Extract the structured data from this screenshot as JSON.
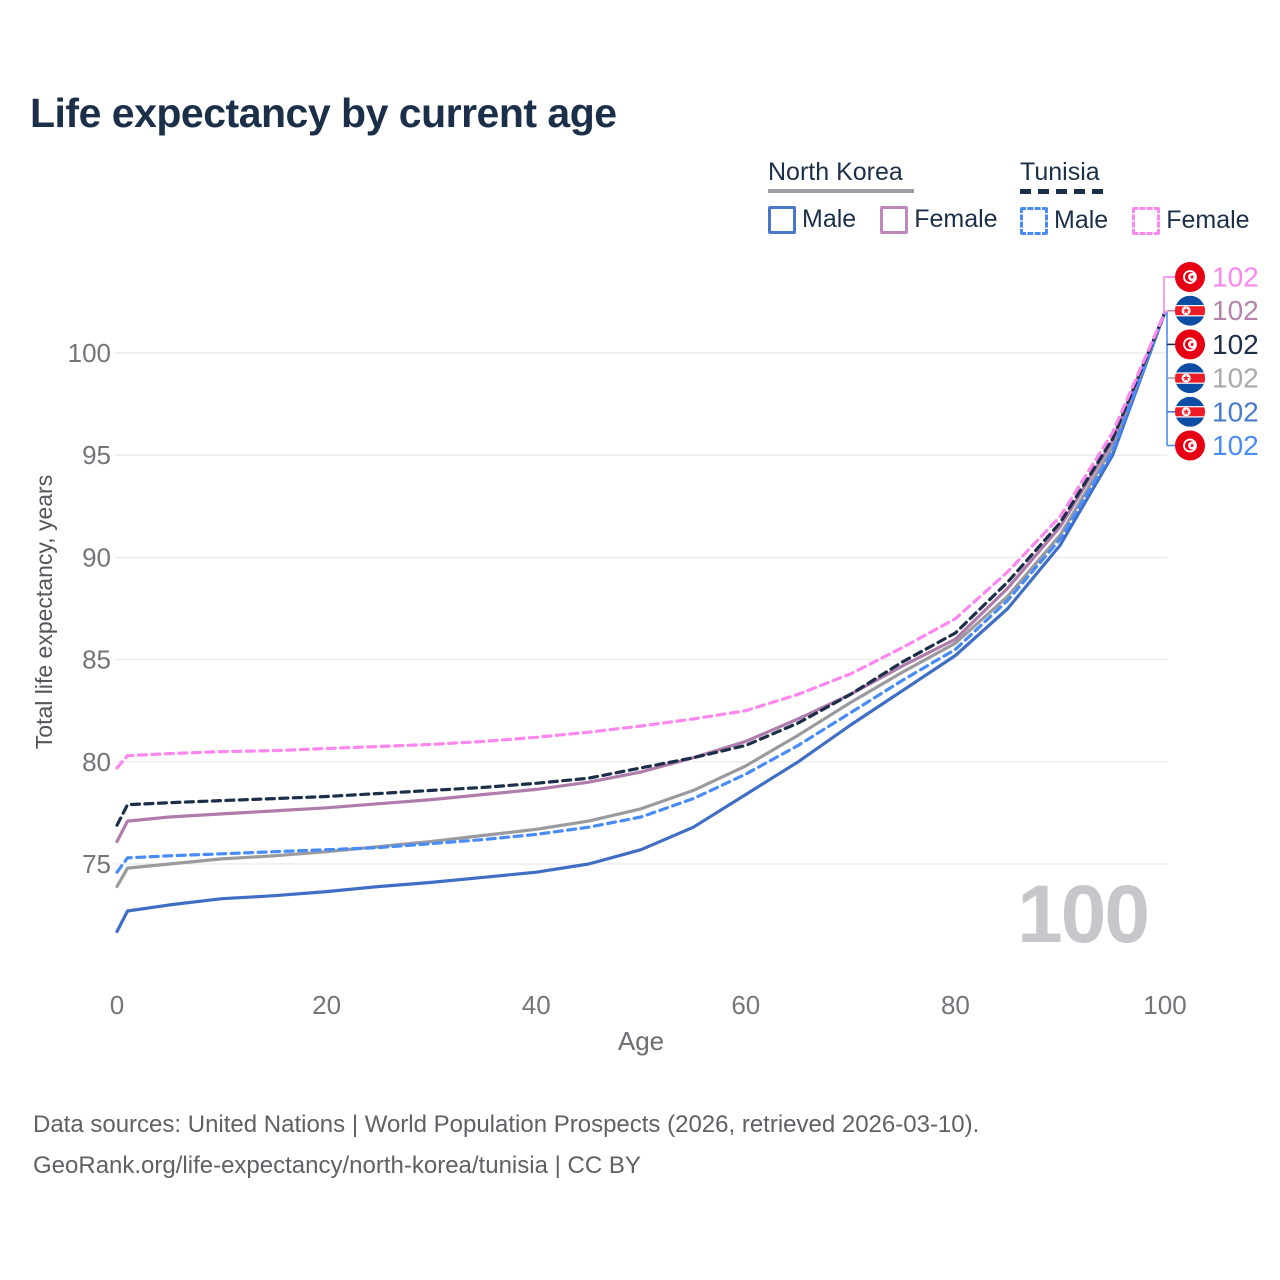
{
  "meta": {
    "title": "Life expectancy by current age"
  },
  "legend": {
    "nk": {
      "country": "North Korea",
      "male": "Male",
      "female": "Female"
    },
    "tn": {
      "country": "Tunisia",
      "male": "Male",
      "female": "Female"
    }
  },
  "chart_data": {
    "type": "line",
    "title": "Life expectancy by current age",
    "xlabel": "Age",
    "ylabel": "Total life expectancy, years",
    "age_indicator": "100",
    "xlim": [
      0,
      100
    ],
    "ylim": [
      71,
      103
    ],
    "x_ticks": [
      0,
      20,
      40,
      60,
      80,
      100
    ],
    "y_ticks": [
      75,
      80,
      85,
      90,
      95,
      100
    ],
    "grid": "horizontal-only",
    "legend_position": "top-right",
    "x": [
      0,
      1,
      5,
      10,
      15,
      20,
      25,
      30,
      35,
      40,
      45,
      50,
      55,
      60,
      65,
      70,
      75,
      80,
      85,
      90,
      95,
      100
    ],
    "series": [
      {
        "name": "North Korea Male",
        "country": "North Korea",
        "sex": "Male",
        "color": "#3f6ec4",
        "dash": false,
        "values": [
          71.7,
          72.7,
          73.0,
          73.3,
          73.45,
          73.65,
          73.9,
          74.1,
          74.35,
          74.6,
          75.0,
          75.7,
          76.8,
          78.4,
          80.0,
          81.8,
          83.5,
          85.2,
          87.5,
          90.6,
          95.0,
          102
        ]
      },
      {
        "name": "North Korea Total",
        "country": "North Korea",
        "sex": "Both",
        "color": "#9b9b9f",
        "dash": false,
        "values": [
          73.9,
          74.8,
          75.0,
          75.25,
          75.4,
          75.6,
          75.85,
          76.1,
          76.4,
          76.7,
          77.1,
          77.7,
          78.6,
          79.8,
          81.3,
          82.9,
          84.4,
          85.8,
          88.1,
          91.1,
          95.4,
          102
        ]
      },
      {
        "name": "North Korea Female",
        "country": "North Korea",
        "sex": "Female",
        "color": "#b07cab",
        "dash": false,
        "values": [
          76.1,
          77.1,
          77.3,
          77.45,
          77.6,
          77.75,
          77.95,
          78.15,
          78.4,
          78.65,
          79.0,
          79.5,
          80.2,
          81.0,
          82.1,
          83.3,
          84.7,
          86.0,
          88.5,
          91.5,
          95.7,
          102
        ]
      },
      {
        "name": "Tunisia Male",
        "country": "Tunisia",
        "sex": "Male",
        "color": "#4a8cf5",
        "dash": true,
        "values": [
          74.6,
          75.3,
          75.4,
          75.5,
          75.6,
          75.7,
          75.8,
          76.0,
          76.2,
          76.45,
          76.8,
          77.3,
          78.2,
          79.4,
          80.8,
          82.4,
          84.0,
          85.5,
          87.9,
          90.9,
          95.2,
          102
        ]
      },
      {
        "name": "Tunisia Total",
        "country": "Tunisia",
        "sex": "Both",
        "color": "#1c2f49",
        "dash": true,
        "values": [
          76.9,
          77.9,
          78.0,
          78.1,
          78.2,
          78.3,
          78.45,
          78.6,
          78.75,
          78.95,
          79.2,
          79.7,
          80.2,
          80.8,
          81.9,
          83.3,
          84.9,
          86.3,
          88.8,
          91.7,
          95.8,
          102
        ]
      },
      {
        "name": "Tunisia Female",
        "country": "Tunisia",
        "sex": "Female",
        "color": "#fb87ef",
        "dash": true,
        "values": [
          79.7,
          80.3,
          80.4,
          80.5,
          80.55,
          80.65,
          80.75,
          80.85,
          81.0,
          81.2,
          81.45,
          81.75,
          82.1,
          82.5,
          83.3,
          84.3,
          85.6,
          87.0,
          89.3,
          92.0,
          96.1,
          102
        ]
      }
    ],
    "end_labels": [
      {
        "text": "102",
        "series": "Tunisia Female",
        "flag": "tunisia",
        "color": "#fb87ef"
      },
      {
        "text": "102",
        "series": "North Korea Female",
        "flag": "north-korea",
        "color": "#b583ab"
      },
      {
        "text": "102",
        "series": "Tunisia Total",
        "flag": "tunisia",
        "color": "#1c2f49"
      },
      {
        "text": "102",
        "series": "North Korea Total",
        "flag": "north-korea",
        "color": "#a9a9ae"
      },
      {
        "text": "102",
        "series": "North Korea Male",
        "flag": "north-korea",
        "color": "#4a7ccc"
      },
      {
        "text": "102",
        "series": "Tunisia Male",
        "flag": "tunisia",
        "color": "#4a8cf5"
      }
    ]
  },
  "footer": {
    "line1": "Data sources: United Nations | World Population Prospects (2026, retrieved 2026-03-10).",
    "line2": "GeoRank.org/life-expectancy/north-korea/tunisia | CC BY"
  }
}
